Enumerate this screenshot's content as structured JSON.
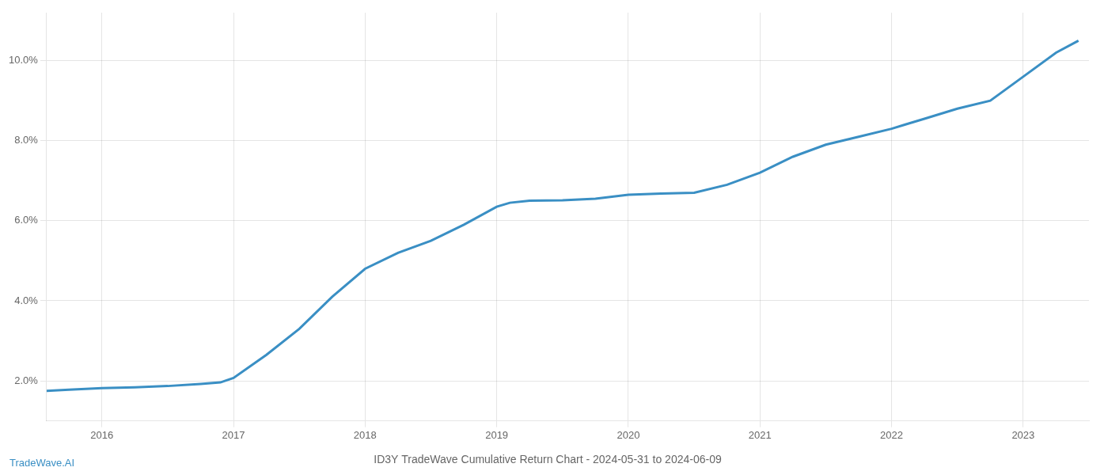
{
  "chart_data": {
    "type": "line",
    "title": "ID3Y TradeWave Cumulative Return Chart - 2024-05-31 to 2024-06-09",
    "annotations": [
      "TradeWave.AI"
    ],
    "x": [
      2015.58,
      2015.75,
      2016.0,
      2016.25,
      2016.5,
      2016.75,
      2016.9,
      2017.0,
      2017.25,
      2017.5,
      2017.75,
      2018.0,
      2018.25,
      2018.5,
      2018.75,
      2019.0,
      2019.1,
      2019.25,
      2019.5,
      2019.75,
      2020.0,
      2020.25,
      2020.5,
      2020.75,
      2021.0,
      2021.25,
      2021.5,
      2021.75,
      2022.0,
      2022.1,
      2022.25,
      2022.5,
      2022.75,
      2023.0,
      2023.25,
      2023.42
    ],
    "values": [
      0.0175,
      0.0178,
      0.0182,
      0.0184,
      0.0187,
      0.0192,
      0.0196,
      0.0207,
      0.0265,
      0.033,
      0.041,
      0.048,
      0.052,
      0.055,
      0.059,
      0.0635,
      0.0645,
      0.065,
      0.0651,
      0.0655,
      0.0665,
      0.0668,
      0.067,
      0.069,
      0.072,
      0.076,
      0.079,
      0.081,
      0.083,
      0.084,
      0.0855,
      0.088,
      0.09,
      0.096,
      0.102,
      0.105
    ],
    "color": "#3a8fc4",
    "xlim": [
      2015.58,
      2023.5
    ],
    "xticks": [
      2016,
      2017,
      2018,
      2019,
      2020,
      2021,
      2022,
      2023
    ],
    "ylim": [
      0.01,
      0.112
    ],
    "yticks": [
      {
        "value": 0.02,
        "label": "2.0%"
      },
      {
        "value": 0.04,
        "label": "4.0%"
      },
      {
        "value": 0.06,
        "label": "6.0%"
      },
      {
        "value": 0.08,
        "label": "8.0%"
      },
      {
        "value": 0.1,
        "label": "10.0%"
      }
    ],
    "grid": true
  }
}
